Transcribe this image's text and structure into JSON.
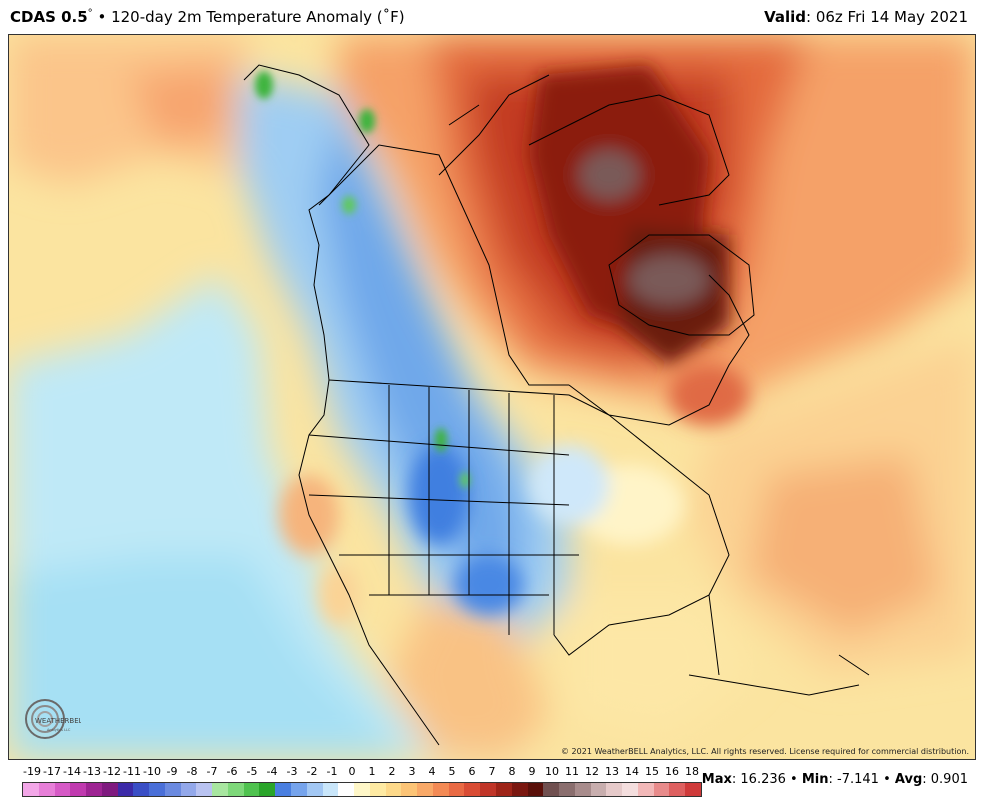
{
  "header": {
    "product": "CDAS 0.5",
    "degree": "°",
    "bullet": "•",
    "title": "120-day 2m Temperature Anomaly (˚F)",
    "valid_label": "Valid",
    "valid_value": ": 06z Fri 14 May 2021"
  },
  "map": {
    "copyright": "© 2021 WeatherBELL Analytics, LLC. All rights reserved. License required for commercial distribution.",
    "logo_text": "WEATHERBELL",
    "logo_subtext": "Analytics LLC"
  },
  "colorbar": {
    "labels": [
      "-19",
      "-17",
      "-14",
      "-13",
      "-12",
      "-11",
      "-10",
      "-9",
      "-8",
      "-7",
      "-6",
      "-5",
      "-4",
      "-3",
      "-2",
      "-1",
      "0",
      "1",
      "2",
      "3",
      "4",
      "5",
      "6",
      "7",
      "8",
      "9",
      "10",
      "11",
      "12",
      "13",
      "14",
      "15",
      "16",
      "18"
    ],
    "colors": [
      "#f3a7e8",
      "#e77fd8",
      "#d65ac6",
      "#c03aaf",
      "#9e2493",
      "#7f1a7f",
      "#3c2aa8",
      "#3a4fc6",
      "#4a6fd8",
      "#6b8ae0",
      "#93a8ea",
      "#b9c3f1",
      "#a8e6a0",
      "#7ed87a",
      "#4fc24f",
      "#2aa52a",
      "#4a7fe0",
      "#76a4ec",
      "#a3c8f4",
      "#c9e6fa",
      "#ffffff",
      "#fff7c8",
      "#feeaa3",
      "#fdd98a",
      "#fcc476",
      "#f9a968",
      "#f38a55",
      "#e96a44",
      "#d94c34",
      "#c03528",
      "#9e2418",
      "#7a1710",
      "#5a100a",
      "#705050",
      "#8a6e6e",
      "#a88c8c",
      "#c8aeae",
      "#e6caca",
      "#f4dede",
      "#f2b8b8",
      "#e88b8b",
      "#de6060",
      "#cf3a3a"
    ]
  },
  "stats": {
    "max_label": "Max",
    "max_value": ": 16.236",
    "min_label": "Min",
    "min_value": ": -7.141",
    "avg_label": "Avg",
    "avg_value": ": 0.901",
    "sep": "•"
  }
}
